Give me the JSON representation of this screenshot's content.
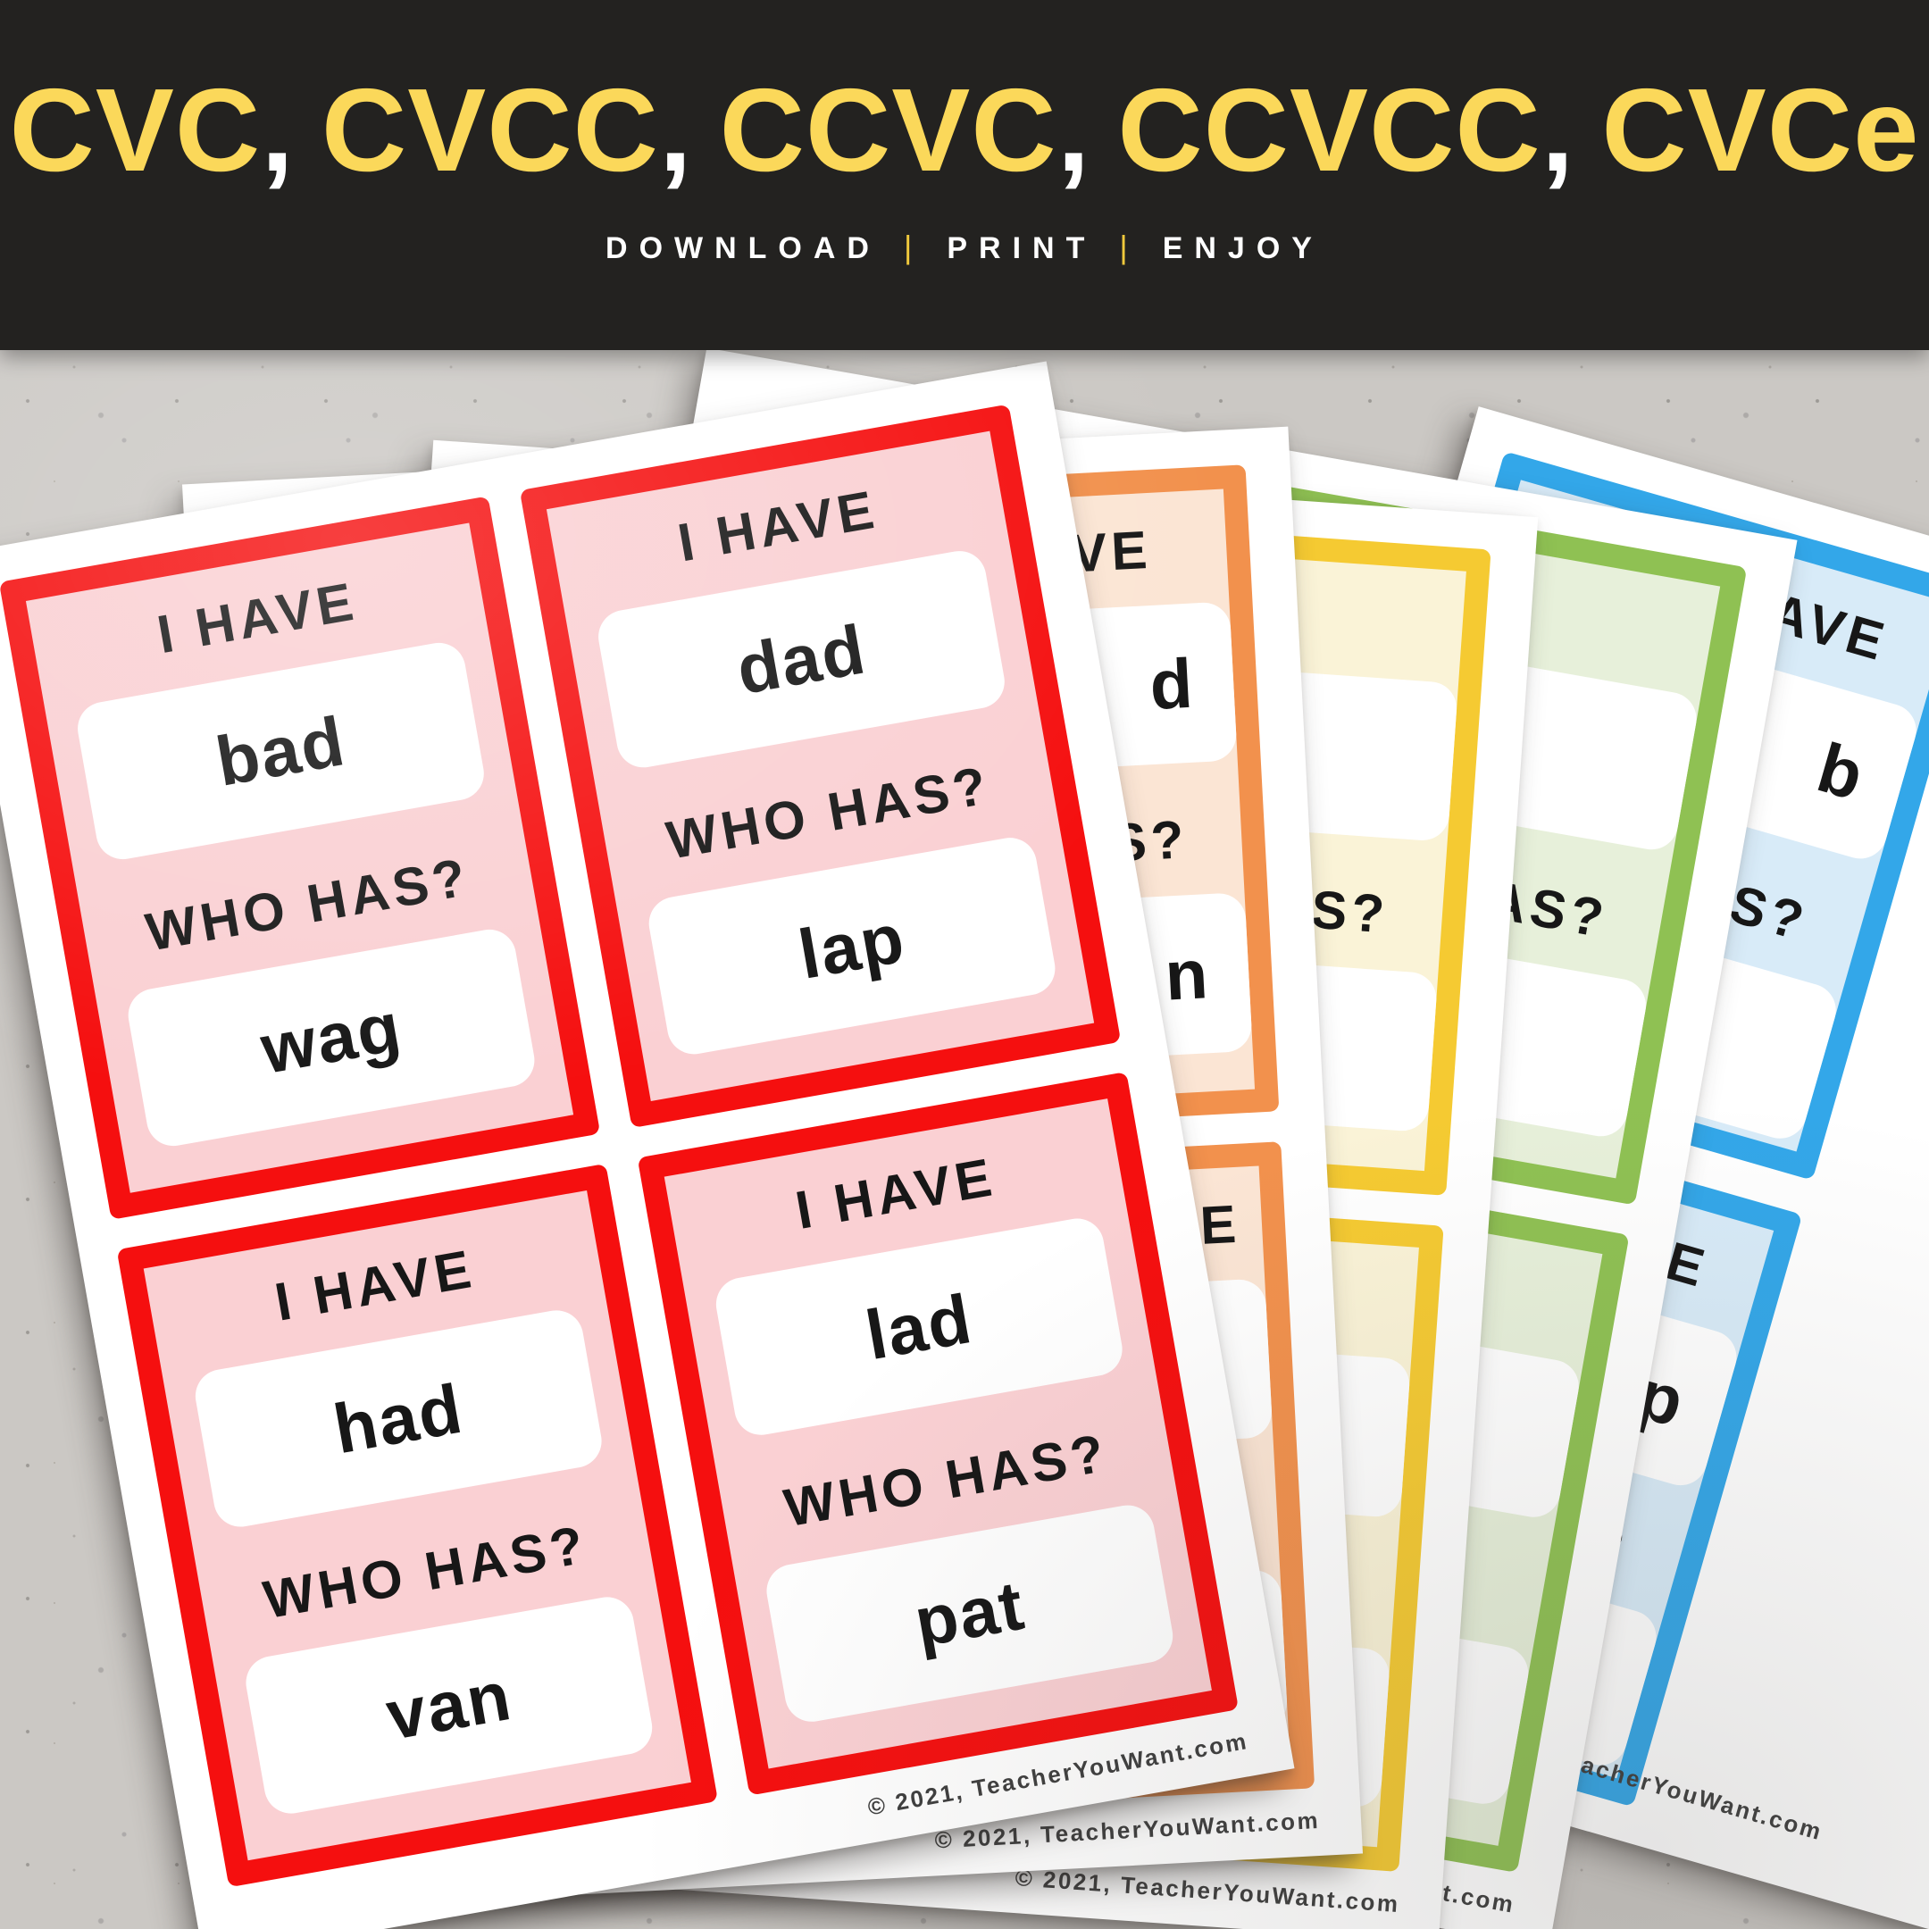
{
  "header": {
    "title_groups": [
      "CVC",
      "CVCC",
      "CCVC",
      "CCVCC",
      "CVCe"
    ],
    "comma": ",",
    "title_color": "#fbd85a",
    "comma_color": "#ffffff",
    "background": "#232220",
    "tagline": {
      "items": [
        "DOWNLOAD",
        "PRINT",
        "ENJOY"
      ],
      "pipe": "|",
      "text_color": "#ffffff",
      "pipe_color": "#f0c93c"
    }
  },
  "scene": {
    "background_base": "#cbc8c4"
  },
  "copyright": "© 2021, TeacherYouWant.com",
  "card_template": {
    "have_label": "I HAVE",
    "who_label": "WHO HAS?"
  },
  "pages": [
    {
      "name": "red",
      "border_color": "#f50f0f",
      "fill_color": "#fad0d3",
      "cards": [
        {
          "h1": "I HAVE",
          "w1": "bad",
          "h2": "WHO HAS?",
          "w2": "wag"
        },
        {
          "h1": "I HAVE",
          "w1": "dad",
          "h2": "WHO HAS?",
          "w2": "lap"
        },
        {
          "h1": "I HAVE",
          "w1": "had",
          "h2": "WHO HAS?",
          "w2": "van"
        },
        {
          "h1": "I HAVE",
          "w1": "lad",
          "h2": "WHO HAS?",
          "w2": "pat"
        }
      ]
    },
    {
      "name": "orange",
      "border_color": "#f2914d",
      "fill_color": "#fbe5d4",
      "cards": [
        {
          "h1": "I HAVE",
          "w1": "d",
          "h2": "WHO HAS?",
          "w2": "n"
        },
        {
          "h1": "I HAVE",
          "w1": "",
          "h2": "WHO HAS?",
          "w2": ""
        }
      ]
    },
    {
      "name": "yellow",
      "border_color": "#f5ca32",
      "fill_color": "#faf3d7",
      "cards": [
        {
          "h1": "",
          "w1": "",
          "h2": "WHO HAS?",
          "w2": ""
        },
        {
          "h1": "",
          "w1": "",
          "h2": "",
          "w2": ""
        }
      ]
    },
    {
      "name": "green",
      "border_color": "#8fc153",
      "fill_color": "#e7f0da",
      "cards": [
        {
          "h1": "",
          "w1": "",
          "h2": "WHO HAS?",
          "w2": ""
        },
        {
          "h1": "",
          "w1": "",
          "h2": "",
          "w2": ""
        }
      ]
    },
    {
      "name": "blue",
      "border_color": "#33a7e9",
      "fill_color": "#d8ebf8",
      "cards": [
        {
          "h1": "I HAVE",
          "w1": "b",
          "h2": "WHO HAS?",
          "w2": ""
        },
        {
          "h1": "I HAVE",
          "w1": "p",
          "h2": "WHO HAS?",
          "w2": ""
        }
      ]
    }
  ]
}
